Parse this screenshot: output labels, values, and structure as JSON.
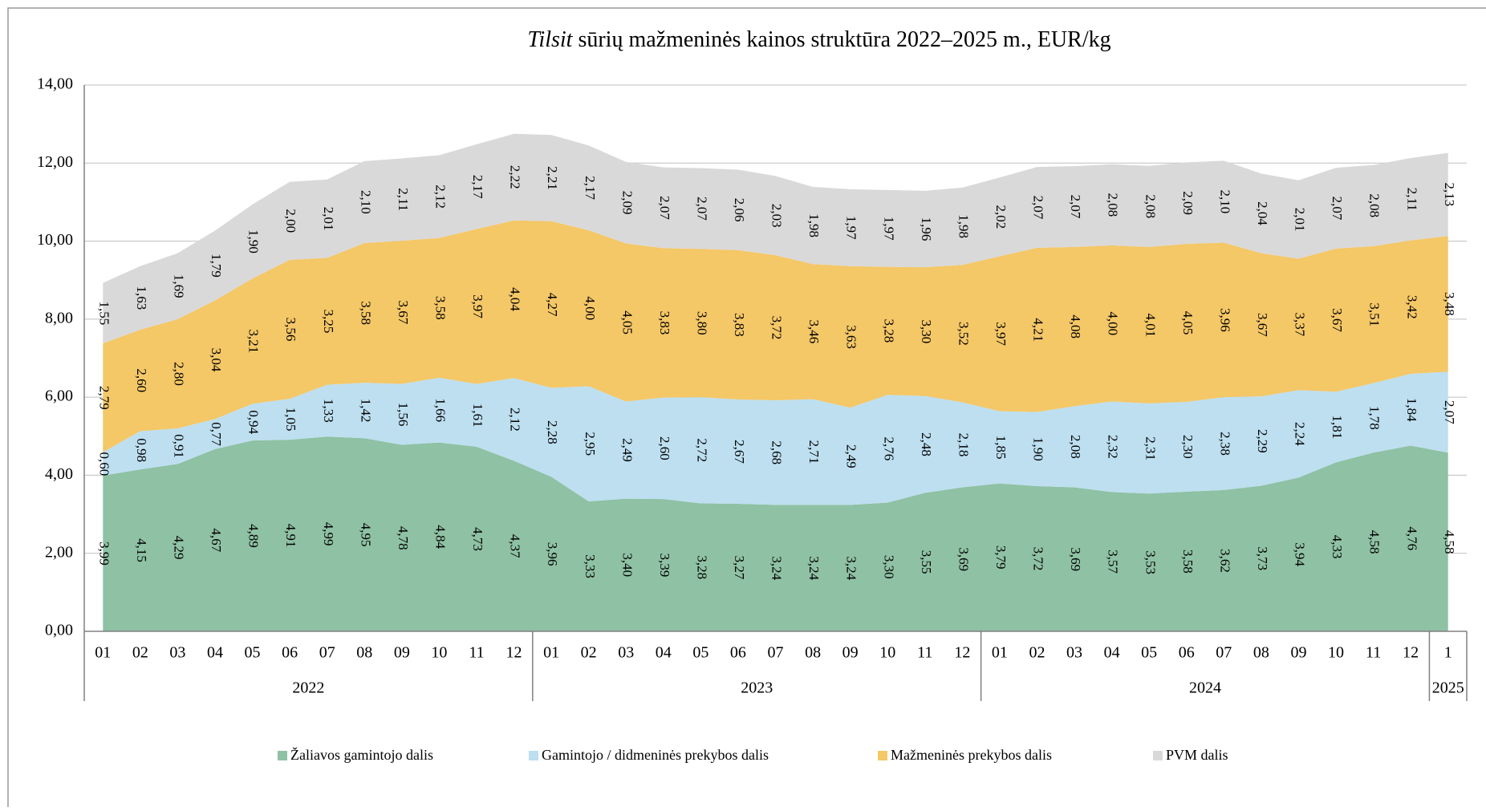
{
  "chart_data": {
    "type": "stacked_area",
    "title_italic": "Tilsit",
    "title": " sūrių mažmeninės kainos struktūra 2022–2025 m., EUR/kg",
    "categories": [
      "01",
      "02",
      "03",
      "04",
      "05",
      "06",
      "07",
      "08",
      "09",
      "10",
      "11",
      "12",
      "01",
      "02",
      "03",
      "04",
      "05",
      "06",
      "07",
      "08",
      "09",
      "10",
      "11",
      "12",
      "01",
      "02",
      "03",
      "04",
      "05",
      "06",
      "07",
      "08",
      "09",
      "10",
      "11",
      "12",
      "1"
    ],
    "category_years": [
      "2022",
      "2022",
      "2022",
      "2022",
      "2022",
      "2022",
      "2022",
      "2022",
      "2022",
      "2022",
      "2022",
      "2022",
      "2023",
      "2023",
      "2023",
      "2023",
      "2023",
      "2023",
      "2023",
      "2023",
      "2023",
      "2023",
      "2023",
      "2023",
      "2024",
      "2024",
      "2024",
      "2024",
      "2024",
      "2024",
      "2024",
      "2024",
      "2024",
      "2024",
      "2024",
      "2024",
      "2025"
    ],
    "ylim": [
      0,
      14
    ],
    "yticks": [
      {
        "value": 0,
        "label": "0,00"
      },
      {
        "value": 2,
        "label": "2,00"
      },
      {
        "value": 4,
        "label": "4,00"
      },
      {
        "value": 6,
        "label": "6,00"
      },
      {
        "value": 8,
        "label": "8,00"
      },
      {
        "value": 10,
        "label": "10,00"
      },
      {
        "value": 12,
        "label": "12,00"
      },
      {
        "value": 14,
        "label": "14,00"
      }
    ],
    "grid": true,
    "legend": "bottom",
    "series": [
      {
        "name": "Žaliavos gamintojo dalis",
        "color": "#8fc1a4",
        "values": [
          3.99,
          4.15,
          4.29,
          4.67,
          4.89,
          4.91,
          4.99,
          4.95,
          4.78,
          4.84,
          4.73,
          4.37,
          3.96,
          3.33,
          3.4,
          3.39,
          3.28,
          3.27,
          3.24,
          3.24,
          3.24,
          3.3,
          3.55,
          3.69,
          3.79,
          3.72,
          3.69,
          3.57,
          3.53,
          3.58,
          3.62,
          3.73,
          3.94,
          4.33,
          4.58,
          4.76,
          4.58
        ],
        "value_labels": [
          "3,99",
          "4,15",
          "4,29",
          "4,67",
          "4,89",
          "4,91",
          "4,99",
          "4,95",
          "4,78",
          "4,84",
          "4,73",
          "4,37",
          "3,96",
          "3,33",
          "3,40",
          "3,39",
          "3,28",
          "3,27",
          "3,24",
          "3,24",
          "3,24",
          "3,30",
          "3,55",
          "3,69",
          "3,79",
          "3,72",
          "3,69",
          "3,57",
          "3,53",
          "3,58",
          "3,62",
          "3,73",
          "3,94",
          "4,33",
          "4,58",
          "4,76",
          "4,58"
        ]
      },
      {
        "name": "Gamintojo / didmeninės prekybos dalis",
        "color": "#bddff0",
        "values": [
          0.6,
          0.98,
          0.91,
          0.77,
          0.94,
          1.05,
          1.33,
          1.42,
          1.56,
          1.66,
          1.61,
          2.12,
          2.28,
          2.95,
          2.49,
          2.6,
          2.72,
          2.67,
          2.68,
          2.71,
          2.49,
          2.76,
          2.48,
          2.18,
          1.85,
          1.9,
          2.08,
          2.32,
          2.31,
          2.3,
          2.38,
          2.29,
          2.24,
          1.81,
          1.78,
          1.84,
          2.07
        ],
        "value_labels": [
          "0,60",
          "0,98",
          "0,91",
          "0,77",
          "0,94",
          "1,05",
          "1,33",
          "1,42",
          "1,56",
          "1,66",
          "1,61",
          "2,12",
          "2,28",
          "2,95",
          "2,49",
          "2,60",
          "2,72",
          "2,67",
          "2,68",
          "2,71",
          "2,49",
          "2,76",
          "2,48",
          "2,18",
          "1,85",
          "1,90",
          "2,08",
          "2,32",
          "2,31",
          "2,30",
          "2,38",
          "2,29",
          "2,24",
          "1,81",
          "1,78",
          "1,84",
          "2,07"
        ]
      },
      {
        "name": "Mažmeninės prekybos dalis",
        "color": "#f4c767",
        "values": [
          2.79,
          2.6,
          2.8,
          3.04,
          3.21,
          3.56,
          3.25,
          3.58,
          3.67,
          3.58,
          3.97,
          4.04,
          4.27,
          4.0,
          4.05,
          3.83,
          3.8,
          3.83,
          3.72,
          3.46,
          3.63,
          3.28,
          3.3,
          3.52,
          3.97,
          4.21,
          4.08,
          4.0,
          4.01,
          4.05,
          3.96,
          3.67,
          3.37,
          3.67,
          3.51,
          3.42,
          3.48
        ],
        "value_labels": [
          "2,79",
          "2,60",
          "2,80",
          "3,04",
          "3,21",
          "3,56",
          "3,25",
          "3,58",
          "3,67",
          "3,58",
          "3,97",
          "4,04",
          "4,27",
          "4,00",
          "4,05",
          "3,83",
          "3,80",
          "3,83",
          "3,72",
          "3,46",
          "3,63",
          "3,28",
          "3,30",
          "3,52",
          "3,97",
          "4,21",
          "4,08",
          "4,00",
          "4,01",
          "4,05",
          "3,96",
          "3,67",
          "3,37",
          "3,67",
          "3,51",
          "3,42",
          "3,48"
        ]
      },
      {
        "name": "PVM dalis",
        "color": "#d9d9d9",
        "values": [
          1.55,
          1.63,
          1.69,
          1.79,
          1.9,
          2.0,
          2.01,
          2.1,
          2.11,
          2.12,
          2.17,
          2.22,
          2.21,
          2.17,
          2.09,
          2.07,
          2.07,
          2.06,
          2.03,
          1.98,
          1.97,
          1.97,
          1.96,
          1.98,
          2.02,
          2.07,
          2.07,
          2.08,
          2.08,
          2.09,
          2.1,
          2.04,
          2.01,
          2.07,
          2.08,
          2.11,
          2.13
        ],
        "value_labels": [
          "1,55",
          "1,63",
          "1,69",
          "1,79",
          "1,90",
          "2,00",
          "2,01",
          "2,10",
          "2,11",
          "2,12",
          "2,17",
          "2,22",
          "2,21",
          "2,17",
          "2,09",
          "2,07",
          "2,07",
          "2,06",
          "2,03",
          "1,98",
          "1,97",
          "1,97",
          "1,96",
          "1,98",
          "2,02",
          "2,07",
          "2,07",
          "2,08",
          "2,08",
          "2,09",
          "2,10",
          "2,04",
          "2,01",
          "2,07",
          "2,08",
          "2,11",
          "2,13"
        ]
      }
    ]
  }
}
